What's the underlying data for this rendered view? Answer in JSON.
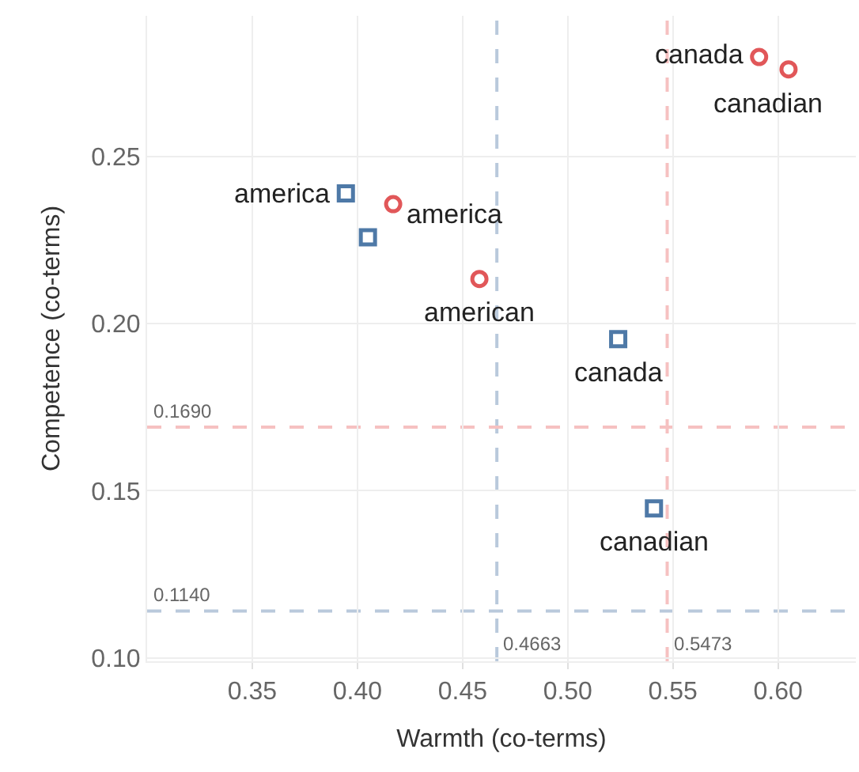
{
  "chart_data": {
    "type": "scatter",
    "xlabel": "Warmth (co-terms)",
    "ylabel": "Competence (co-terms)",
    "series": [
      {
        "color": "#e15759",
        "marker": "circle",
        "x": [
          0.591,
          0.605,
          0.417,
          0.458
        ],
        "values": [
          0.2797,
          0.276,
          0.2357,
          0.2133
        ]
      },
      {
        "color": "#4e79a7",
        "marker": "square",
        "x": [
          0.3945,
          0.405,
          0.524,
          0.541
        ],
        "values": [
          0.2389,
          0.2258,
          0.1953,
          0.1447
        ]
      }
    ],
    "annotations": [
      {
        "text": "canada",
        "x": 0.591,
        "y": 0.2797
      },
      {
        "text": "canadian",
        "x": 0.605,
        "y": 0.276
      },
      {
        "text": "america",
        "x": 0.417,
        "y": 0.2357
      },
      {
        "text": "american",
        "x": 0.458,
        "y": 0.2133
      },
      {
        "text": "america",
        "x": 0.3945,
        "y": 0.2389
      },
      {
        "text": "canada",
        "x": 0.524,
        "y": 0.1953
      },
      {
        "text": "canadian",
        "x": 0.541,
        "y": 0.1447
      }
    ],
    "ref_lines": [
      {
        "axis": "x",
        "value": 0.4663,
        "label": "0.4663",
        "color": "#b9c9dc",
        "line_style": "dashed"
      },
      {
        "axis": "x",
        "value": 0.5473,
        "label": "0.5473",
        "color": "#f6c1c1",
        "line_style": "dashed"
      },
      {
        "axis": "y",
        "value": 0.169,
        "label": "0.1690",
        "color": "#f6c1c1",
        "line_style": "dashed"
      },
      {
        "axis": "y",
        "value": 0.114,
        "label": "0.1140",
        "color": "#b9c9dc",
        "line_style": "dashed"
      }
    ],
    "xlim": [
      0.3,
      0.637
    ],
    "ylim": [
      0.099,
      0.292
    ],
    "xticks": [
      0.35,
      {
        "value": 0.4,
        "label": "0.40"
      },
      0.45,
      {
        "value": 0.5,
        "label": "0.50"
      },
      0.55,
      {
        "value": 0.6,
        "label": "0.60"
      }
    ],
    "yticks": [
      {
        "value": 0.1,
        "label": "0.10"
      },
      0.15,
      {
        "value": 0.2,
        "label": "0.20"
      },
      0.25
    ],
    "grid": true
  }
}
